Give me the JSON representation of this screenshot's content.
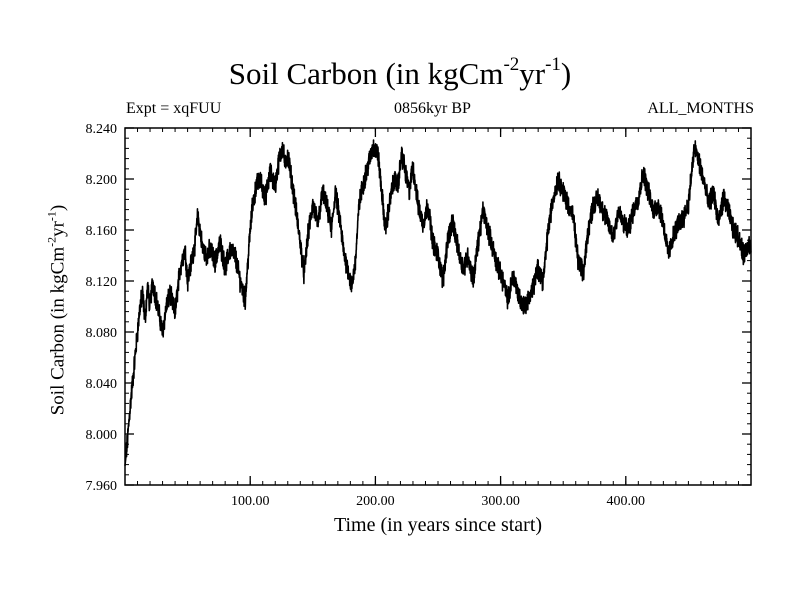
{
  "header": {
    "title_main": "Soil Carbon (in kgCm",
    "title_exp1": "-2",
    "title_mid": "yr",
    "title_exp2": "-1",
    "title_end": ")",
    "expt": "Expt = xqFUU",
    "period": "0856kyr BP",
    "months": "ALL_MONTHS"
  },
  "axes": {
    "ylabel_main": "Soil Carbon (in kgCm",
    "ylabel_exp1": "-2",
    "ylabel_mid": "yr",
    "ylabel_exp2": "-1",
    "ylabel_end": ")"
  },
  "chart_data": {
    "type": "line",
    "title": "Soil Carbon (in kgCm-2yr-1)",
    "xlabel": "Time (in years since start)",
    "ylabel": "Soil Carbon (in kgCm-2yr-1)",
    "xlim": [
      0,
      500
    ],
    "ylim": [
      7.96,
      8.24
    ],
    "xticks": [
      100,
      200,
      300,
      400
    ],
    "xtick_labels": [
      "100.00",
      "200.00",
      "300.00",
      "400.00"
    ],
    "yticks": [
      7.96,
      8.0,
      8.04,
      8.08,
      8.12,
      8.16,
      8.2,
      8.24
    ],
    "ytick_labels": [
      "7.960",
      "8.000",
      "8.040",
      "8.080",
      "8.120",
      "8.160",
      "8.200",
      "8.240"
    ],
    "line_color": "#000000",
    "series": [
      {
        "name": "Soil Carbon",
        "x": [
          0,
          2,
          4,
          6,
          8,
          10,
          12,
          14,
          16,
          18,
          20,
          22,
          25,
          28,
          30,
          33,
          36,
          40,
          44,
          48,
          50,
          53,
          56,
          58,
          60,
          62,
          65,
          68,
          72,
          76,
          80,
          84,
          88,
          92,
          96,
          100,
          102,
          105,
          108,
          112,
          116,
          120,
          123,
          126,
          128,
          130,
          133,
          136,
          140,
          143,
          146,
          150,
          154,
          158,
          162,
          165,
          168,
          172,
          175,
          178,
          181,
          184,
          187,
          190,
          194,
          198,
          202,
          205,
          208,
          212,
          215,
          218,
          221,
          224,
          227,
          230,
          234,
          238,
          242,
          246,
          250,
          254,
          258,
          262,
          266,
          270,
          274,
          278,
          282,
          286,
          290,
          294,
          298,
          302,
          306,
          310,
          314,
          318,
          322,
          326,
          330,
          334,
          338,
          342,
          346,
          350,
          354,
          358,
          362,
          366,
          370,
          374,
          378,
          382,
          386,
          390,
          394,
          398,
          402,
          406,
          410,
          414,
          418,
          422,
          426,
          430,
          434,
          438,
          442,
          446,
          450,
          452,
          455,
          458,
          462,
          466,
          470,
          474,
          478,
          482,
          486,
          490,
          494,
          498,
          500
        ],
        "values": [
          7.975,
          7.995,
          8.02,
          8.04,
          8.06,
          8.08,
          8.1,
          8.11,
          8.09,
          8.115,
          8.1,
          8.12,
          8.105,
          8.09,
          8.08,
          8.1,
          8.11,
          8.095,
          8.13,
          8.145,
          8.12,
          8.135,
          8.15,
          8.17,
          8.16,
          8.145,
          8.14,
          8.145,
          8.135,
          8.15,
          8.13,
          8.145,
          8.14,
          8.12,
          8.105,
          8.16,
          8.18,
          8.195,
          8.2,
          8.185,
          8.205,
          8.195,
          8.215,
          8.225,
          8.21,
          8.22,
          8.2,
          8.18,
          8.15,
          8.125,
          8.155,
          8.18,
          8.165,
          8.19,
          8.175,
          8.16,
          8.19,
          8.165,
          8.14,
          8.13,
          8.115,
          8.135,
          8.18,
          8.195,
          8.21,
          8.225,
          8.22,
          8.19,
          8.16,
          8.185,
          8.2,
          8.195,
          8.22,
          8.205,
          8.19,
          8.21,
          8.18,
          8.165,
          8.18,
          8.15,
          8.14,
          8.12,
          8.155,
          8.165,
          8.145,
          8.13,
          8.14,
          8.12,
          8.15,
          8.175,
          8.16,
          8.145,
          8.13,
          8.12,
          8.105,
          8.125,
          8.11,
          8.1,
          8.105,
          8.115,
          8.13,
          8.12,
          8.16,
          8.185,
          8.2,
          8.19,
          8.18,
          8.17,
          8.135,
          8.125,
          8.16,
          8.18,
          8.185,
          8.175,
          8.165,
          8.155,
          8.175,
          8.165,
          8.16,
          8.175,
          8.185,
          8.205,
          8.19,
          8.175,
          8.18,
          8.165,
          8.14,
          8.155,
          8.165,
          8.17,
          8.18,
          8.2,
          8.225,
          8.215,
          8.2,
          8.18,
          8.19,
          8.165,
          8.185,
          8.175,
          8.16,
          8.155,
          8.14,
          8.15,
          8.145
        ]
      }
    ]
  }
}
